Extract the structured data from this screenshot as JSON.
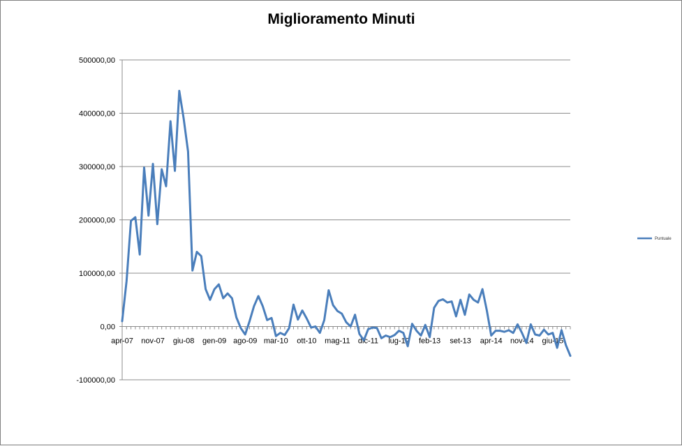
{
  "chart_data": {
    "type": "line",
    "title": "Miglioramento Minuti",
    "xlabel": "",
    "ylabel": "",
    "ylim": [
      -100000,
      500000
    ],
    "ytick_values": [
      -100000,
      0,
      100000,
      200000,
      300000,
      400000,
      500000
    ],
    "ytick_labels": [
      "-100000,00",
      "0,00",
      "100000,00",
      "200000,00",
      "300000,00",
      "400000,00",
      "500000,00"
    ],
    "x_tick_labels": [
      {
        "index": 0,
        "label": "apr-07"
      },
      {
        "index": 7,
        "label": "nov-07"
      },
      {
        "index": 14,
        "label": "giu-08"
      },
      {
        "index": 21,
        "label": "gen-09"
      },
      {
        "index": 28,
        "label": "ago-09"
      },
      {
        "index": 35,
        "label": "mar-10"
      },
      {
        "index": 42,
        "label": "ott-10"
      },
      {
        "index": 49,
        "label": "mag-11"
      },
      {
        "index": 56,
        "label": "dic-11"
      },
      {
        "index": 63,
        "label": "lug-12"
      },
      {
        "index": 70,
        "label": "feb-13"
      },
      {
        "index": 77,
        "label": "set-13"
      },
      {
        "index": 84,
        "label": "apr-14"
      },
      {
        "index": 91,
        "label": "nov-14"
      },
      {
        "index": 98,
        "label": "giu-15"
      }
    ],
    "grid": "horizontal",
    "legend_position": "right",
    "series": [
      {
        "name": "Puntuale",
        "color": "#4a7ebb",
        "values": [
          10000,
          85000,
          198000,
          205000,
          135000,
          298000,
          208000,
          305000,
          192000,
          295000,
          263000,
          385000,
          292000,
          442000,
          390000,
          328000,
          105000,
          140000,
          132000,
          70000,
          50000,
          70000,
          79000,
          53000,
          62000,
          53000,
          17000,
          -3000,
          -15000,
          10000,
          38000,
          57000,
          38000,
          12000,
          16000,
          -18000,
          -12000,
          -16000,
          -3000,
          41000,
          13000,
          30000,
          15000,
          -2000,
          0,
          -12000,
          12000,
          68000,
          40000,
          29000,
          24000,
          8000,
          0,
          22000,
          -14000,
          -26000,
          -5000,
          -2000,
          -3000,
          -22000,
          -17000,
          -20000,
          -16000,
          -8000,
          -12000,
          -37000,
          5000,
          -8000,
          -17000,
          3000,
          -20000,
          35000,
          48000,
          51000,
          45000,
          47000,
          19000,
          50000,
          22000,
          60000,
          50000,
          45000,
          70000,
          30000,
          -17000,
          -8000,
          -8000,
          -10000,
          -7000,
          -12000,
          4000,
          -12000,
          -31000,
          4000,
          -15000,
          -17000,
          -6000,
          -15000,
          -12000,
          -40000,
          -7000,
          -35000,
          -55000
        ]
      }
    ]
  }
}
